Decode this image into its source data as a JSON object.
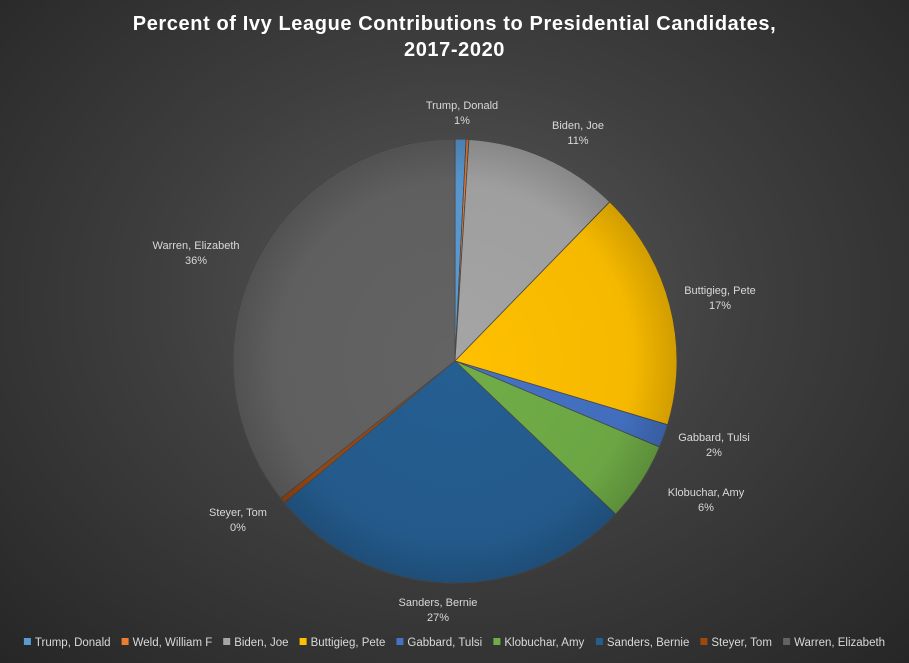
{
  "chart_data": {
    "type": "pie",
    "title_lines": [
      "Percent of Ivy League Contributions to Presidential Candidates,",
      "2017-2020"
    ],
    "legend_position": "bottom",
    "slices": [
      {
        "name": "Trump, Donald",
        "value": 0.8,
        "label": "Trump, Donald",
        "pct_label": "1%",
        "color": "#5b9bd5"
      },
      {
        "name": "Weld, William F",
        "value": 0.2,
        "label": "",
        "pct_label": "",
        "color": "#ed7d31"
      },
      {
        "name": "Biden, Joe",
        "value": 11.3,
        "label": "Biden, Joe",
        "pct_label": "11%",
        "color": "#a5a5a5"
      },
      {
        "name": "Buttigieg, Pete",
        "value": 17.4,
        "label": "Buttigieg, Pete",
        "pct_label": "17%",
        "color": "#ffc000"
      },
      {
        "name": "Gabbard, Tulsi",
        "value": 1.7,
        "label": "Gabbard, Tulsi",
        "pct_label": "2%",
        "color": "#4472c4"
      },
      {
        "name": "Klobuchar, Amy",
        "value": 5.8,
        "label": "Klobuchar, Amy",
        "pct_label": "6%",
        "color": "#70ad47"
      },
      {
        "name": "Sanders, Bernie",
        "value": 26.9,
        "label": "Sanders, Bernie",
        "pct_label": "27%",
        "color": "#255e91"
      },
      {
        "name": "Steyer, Tom",
        "value": 0.4,
        "label": "Steyer, Tom",
        "pct_label": "0%",
        "color": "#9e480e"
      },
      {
        "name": "Warren, Elizabeth",
        "value": 35.7,
        "label": "Warren, Elizabeth",
        "pct_label": "36%",
        "color": "#636363"
      }
    ]
  }
}
